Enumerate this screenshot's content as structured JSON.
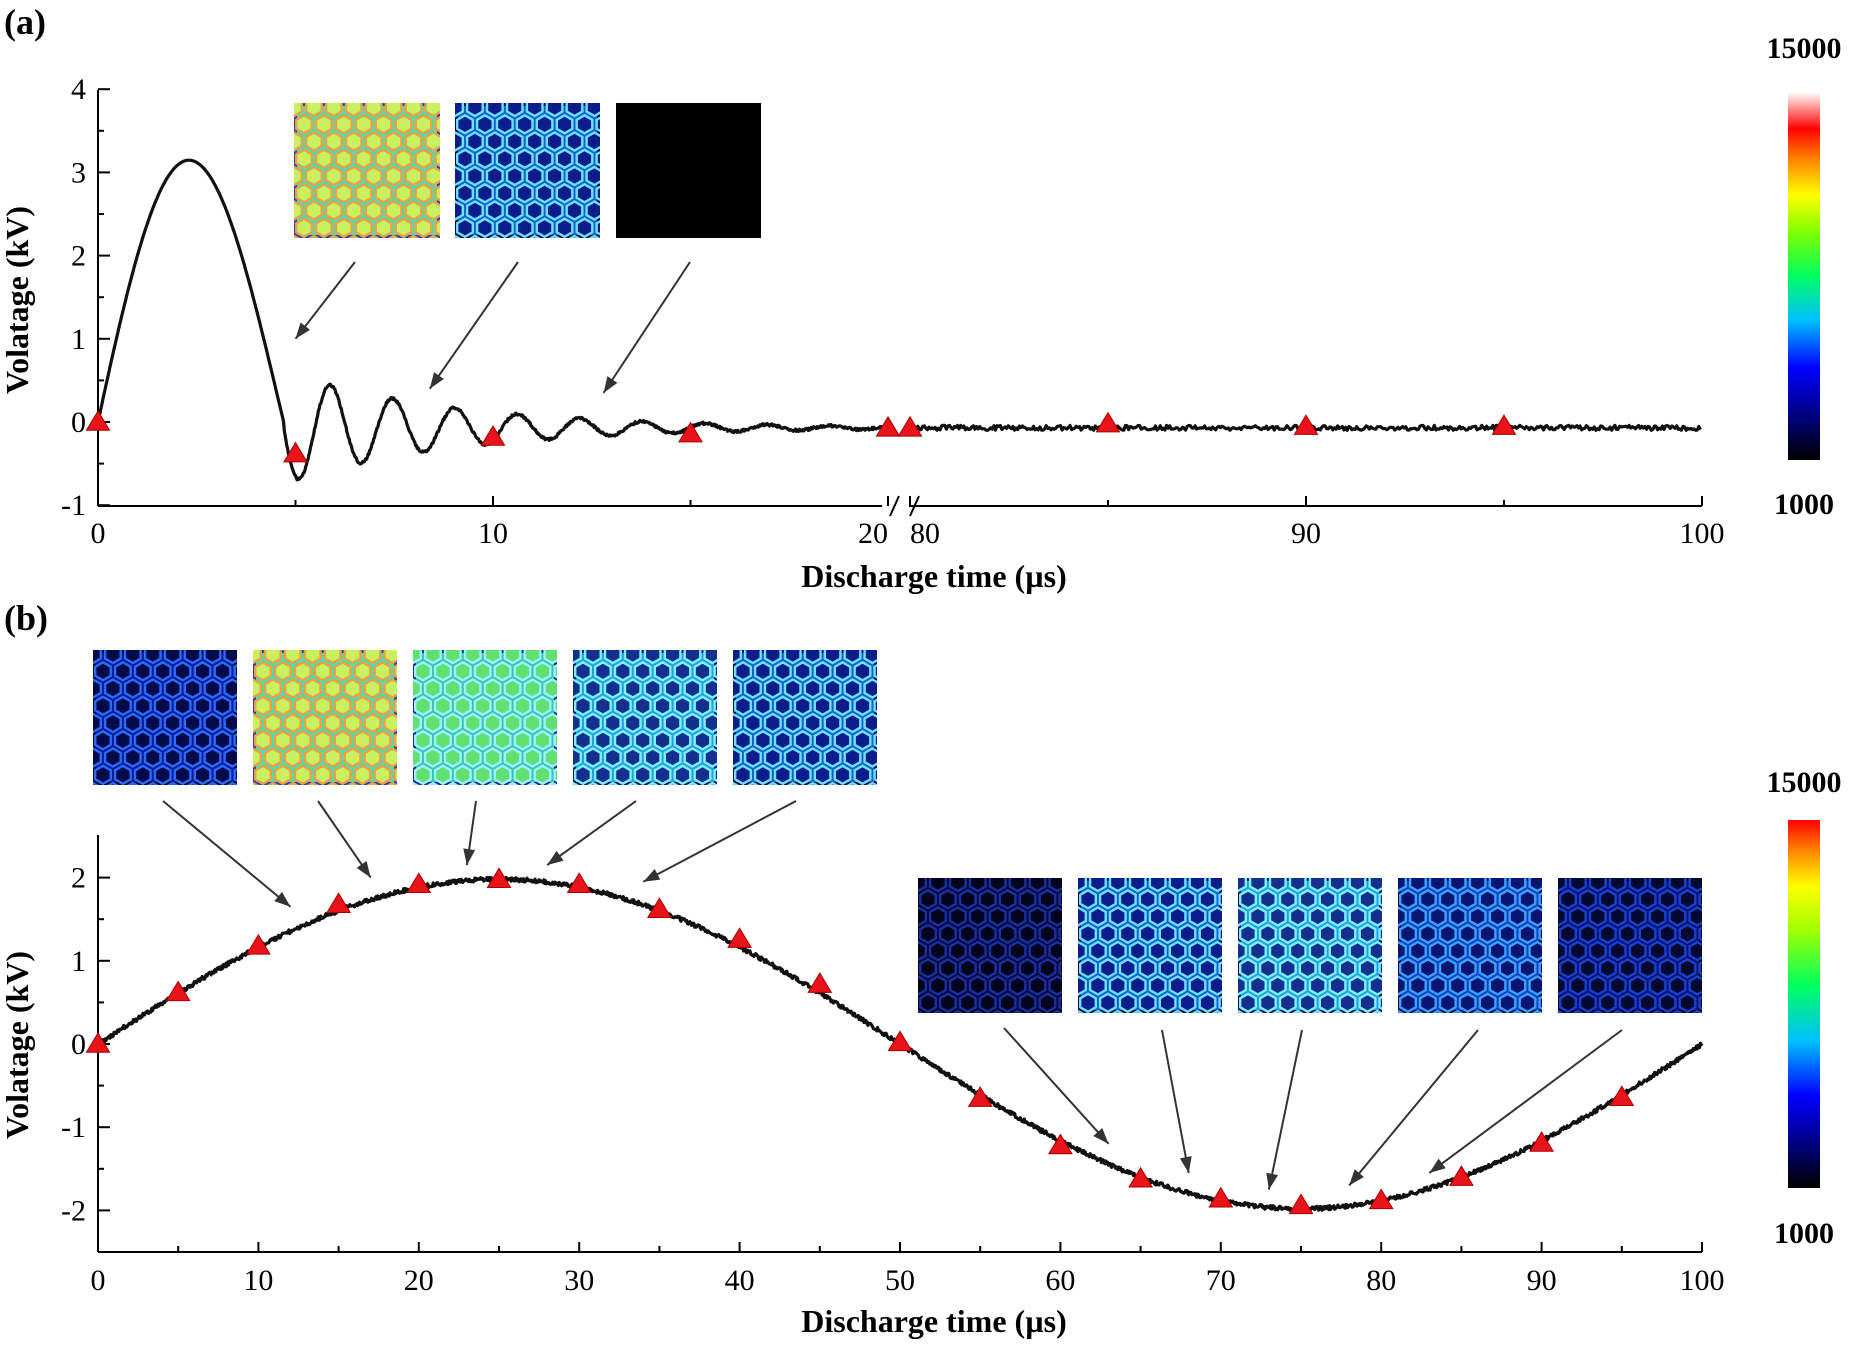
{
  "panels": {
    "a_label": "(a)",
    "b_label": "(b)"
  },
  "colorbar": {
    "max": "15000",
    "min": "1000"
  },
  "chart_data": [
    {
      "id": "a",
      "type": "line",
      "xlabel": "Discharge time (µs)",
      "ylabel": "Volatage (kV)",
      "xlim": [
        0,
        100
      ],
      "ylim": [
        -1,
        4
      ],
      "x_axis_break": [
        20,
        80
      ],
      "yticks": [
        "-1",
        "0",
        "1",
        "2",
        "3",
        "4"
      ],
      "xticks_left": [
        "0",
        "10",
        "20"
      ],
      "xticks_right": [
        "80",
        "90",
        "100"
      ],
      "markers": [
        [
          0,
          0
        ],
        [
          5,
          -0.38
        ],
        [
          10,
          -0.18
        ],
        [
          15,
          -0.14
        ],
        [
          20,
          -0.07
        ],
        [
          80,
          -0.07
        ],
        [
          85,
          -0.02
        ],
        [
          90,
          -0.05
        ],
        [
          95,
          -0.05
        ]
      ],
      "inset_images": [
        {
          "name": "frame-5us",
          "palette": "bright",
          "points_to": [
            5,
            1.0
          ]
        },
        {
          "name": "frame-10us",
          "palette": "medium",
          "points_to": [
            8.4,
            0.4
          ]
        },
        {
          "name": "frame-15us",
          "palette": "dark",
          "points_to": [
            12.8,
            0.35
          ]
        }
      ]
    },
    {
      "id": "b",
      "type": "line",
      "xlabel": "Discharge time (µs)",
      "ylabel": "Volatage (kV)",
      "xlim": [
        0,
        100
      ],
      "ylim": [
        -2.5,
        2.5
      ],
      "yticks": [
        "-2",
        "-1",
        "0",
        "1",
        "2"
      ],
      "xticks": [
        "0",
        "10",
        "20",
        "30",
        "40",
        "50",
        "60",
        "70",
        "80",
        "90",
        "100"
      ],
      "markers": [
        [
          0,
          0
        ],
        [
          5,
          0.62
        ],
        [
          10,
          1.18
        ],
        [
          15,
          1.68
        ],
        [
          20,
          1.92
        ],
        [
          25,
          1.98
        ],
        [
          30,
          1.92
        ],
        [
          35,
          1.62
        ],
        [
          40,
          1.26
        ],
        [
          45,
          0.72
        ],
        [
          50,
          0.02
        ],
        [
          55,
          -0.65
        ],
        [
          60,
          -1.22
        ],
        [
          65,
          -1.62
        ],
        [
          70,
          -1.86
        ],
        [
          75,
          -1.94
        ],
        [
          80,
          -1.88
        ],
        [
          85,
          -1.6
        ],
        [
          90,
          -1.19
        ],
        [
          95,
          -0.64
        ]
      ],
      "inset_images_top": [
        {
          "name": "frame-b1",
          "palette": "dim",
          "points_to": [
            12,
            1.65
          ]
        },
        {
          "name": "frame-b2",
          "palette": "bright",
          "points_to": [
            17,
            2.0
          ]
        },
        {
          "name": "frame-b3",
          "palette": "brightest",
          "points_to": [
            23,
            2.15
          ]
        },
        {
          "name": "frame-b4",
          "palette": "light",
          "points_to": [
            28,
            2.15
          ]
        },
        {
          "name": "frame-b5",
          "palette": "medium",
          "points_to": [
            34,
            1.95
          ]
        }
      ],
      "inset_images_bottom": [
        {
          "name": "frame-b6",
          "palette": "verydark",
          "points_to": [
            63,
            -1.2
          ]
        },
        {
          "name": "frame-b7",
          "palette": "medium",
          "points_to": [
            68,
            -1.55
          ]
        },
        {
          "name": "frame-b8",
          "palette": "light",
          "points_to": [
            73,
            -1.75
          ]
        },
        {
          "name": "frame-b9",
          "palette": "mediumdark",
          "points_to": [
            78,
            -1.7
          ]
        },
        {
          "name": "frame-b10",
          "palette": "dark",
          "points_to": [
            83,
            -1.55
          ]
        }
      ]
    }
  ]
}
